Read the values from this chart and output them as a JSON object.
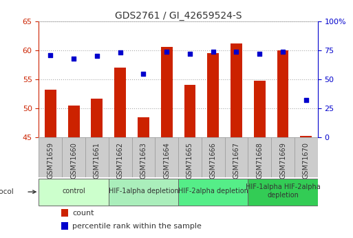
{
  "title": "GDS2761 / GI_42659524-S",
  "samples": [
    "GSM71659",
    "GSM71660",
    "GSM71661",
    "GSM71662",
    "GSM71663",
    "GSM71664",
    "GSM71665",
    "GSM71666",
    "GSM71667",
    "GSM71668",
    "GSM71669",
    "GSM71670"
  ],
  "counts": [
    53.2,
    50.5,
    51.7,
    57.0,
    48.5,
    60.6,
    54.0,
    59.5,
    61.2,
    54.8,
    60.0,
    45.2
  ],
  "percentiles": [
    71,
    68,
    70,
    73,
    55,
    74,
    72,
    74,
    74,
    72,
    74,
    32
  ],
  "ylim_left": [
    45,
    65
  ],
  "ylim_right": [
    0,
    100
  ],
  "yticks_left": [
    45,
    50,
    55,
    60,
    65
  ],
  "yticks_right": [
    0,
    25,
    50,
    75,
    100
  ],
  "bar_color": "#cc2200",
  "dot_color": "#0000cc",
  "grid_color": "#aaaaaa",
  "xlim": [
    -0.5,
    11.5
  ],
  "protocol_groups": [
    {
      "label": "control",
      "start": 0,
      "end": 3,
      "color": "#ccffcc"
    },
    {
      "label": "HIF-1alpha depletion",
      "start": 3,
      "end": 6,
      "color": "#aaeebb"
    },
    {
      "label": "HIF-2alpha depletion",
      "start": 6,
      "end": 9,
      "color": "#55ee88"
    },
    {
      "label": "HIF-1alpha HIF-2alpha\ndepletion",
      "start": 9,
      "end": 12,
      "color": "#33cc55"
    }
  ],
  "legend_items": [
    {
      "label": "count",
      "color": "#cc2200"
    },
    {
      "label": "percentile rank within the sample",
      "color": "#0000cc"
    }
  ],
  "tick_label_color_left": "#cc2200",
  "tick_label_color_right": "#0000cc",
  "bar_bottom": 45,
  "bar_width": 0.5,
  "dot_size": 22,
  "title_fontsize": 10,
  "axis_fontsize": 8,
  "sample_fontsize": 7,
  "protocol_fontsize": 7,
  "legend_fontsize": 8
}
